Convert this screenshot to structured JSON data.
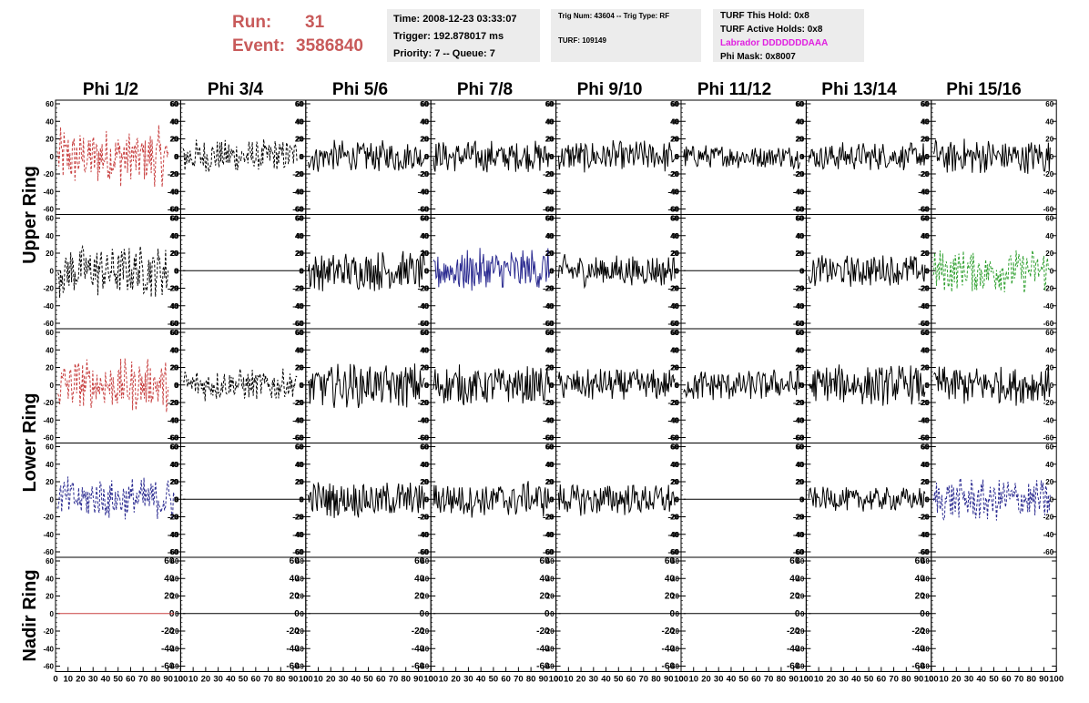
{
  "run": {
    "run_label": "Run:",
    "run_value": "31",
    "event_label": "Event:",
    "event_value": "3586840"
  },
  "time_box": {
    "time": "Time: 2008-12-23 03:33:07",
    "trigger": "Trigger: 192.878017 ms",
    "priority": "Priority: 7 -- Queue: 7"
  },
  "trig_box": {
    "trig": "Trig Num: 43604 -- Trig Type: RF",
    "turf": "TURF: 109149"
  },
  "turf_box": {
    "this_hold": "TURF This Hold: 0x8",
    "active_holds": "TURF Active Holds: 0x8",
    "labrador": "Labrador DDDDDDDAAA",
    "phi_mask": "Phi Mask: 0x8007"
  },
  "colors": {
    "red": "#c84040",
    "black": "#000000",
    "blue": "#2a2a90",
    "green": "#30a030",
    "header_red": "#c85a5a",
    "magenta": "#e020e0"
  },
  "chart_data": {
    "type": "line",
    "columns": [
      "Phi 1/2",
      "Phi 3/4",
      "Phi 5/6",
      "Phi 7/8",
      "Phi 9/10",
      "Phi 11/12",
      "Phi 13/14",
      "Phi 15/16"
    ],
    "ring_labels": [
      "Upper Ring",
      "Lower Ring",
      "Nadir Ring"
    ],
    "ylim": [
      -60,
      60
    ],
    "yticks": [
      -60,
      -40,
      -20,
      0,
      20,
      40,
      60
    ],
    "xlim": [
      0,
      100
    ],
    "xticks": [
      0,
      10,
      20,
      30,
      40,
      50,
      60,
      70,
      80,
      90,
      100
    ],
    "panels": [
      [
        "red-dash",
        "black-dash",
        "black",
        "black",
        "black",
        "black",
        "black",
        "black"
      ],
      [
        "black-dash",
        "flat",
        "black",
        "blue",
        "black",
        "flat",
        "black",
        "green-dash"
      ],
      [
        "red-dash",
        "black-dash",
        "black",
        "black",
        "black",
        "black",
        "black",
        "black"
      ],
      [
        "blue-dash",
        "flat",
        "black",
        "black",
        "black",
        "flat",
        "black",
        "blue-dash"
      ],
      [
        "flat-red",
        "flat",
        "flat",
        "flat",
        "flat",
        "flat",
        "flat",
        "none"
      ]
    ],
    "amplitude": [
      [
        30,
        18,
        16,
        16,
        16,
        12,
        14,
        18
      ],
      [
        26,
        0,
        20,
        22,
        16,
        0,
        16,
        22
      ],
      [
        26,
        16,
        22,
        20,
        16,
        16,
        20,
        20
      ],
      [
        22,
        0,
        18,
        18,
        16,
        0,
        12,
        22
      ],
      [
        0,
        0,
        0,
        0,
        0,
        0,
        0,
        0
      ]
    ],
    "waveform_end": [
      [
        90,
        93,
        95,
        95,
        95,
        95,
        95,
        95
      ],
      [
        90,
        100,
        95,
        95,
        95,
        100,
        95,
        95
      ],
      [
        90,
        93,
        95,
        95,
        95,
        95,
        95,
        95
      ],
      [
        95,
        100,
        95,
        95,
        95,
        100,
        95,
        95
      ],
      [
        95,
        100,
        100,
        100,
        100,
        100,
        100,
        100
      ]
    ]
  }
}
